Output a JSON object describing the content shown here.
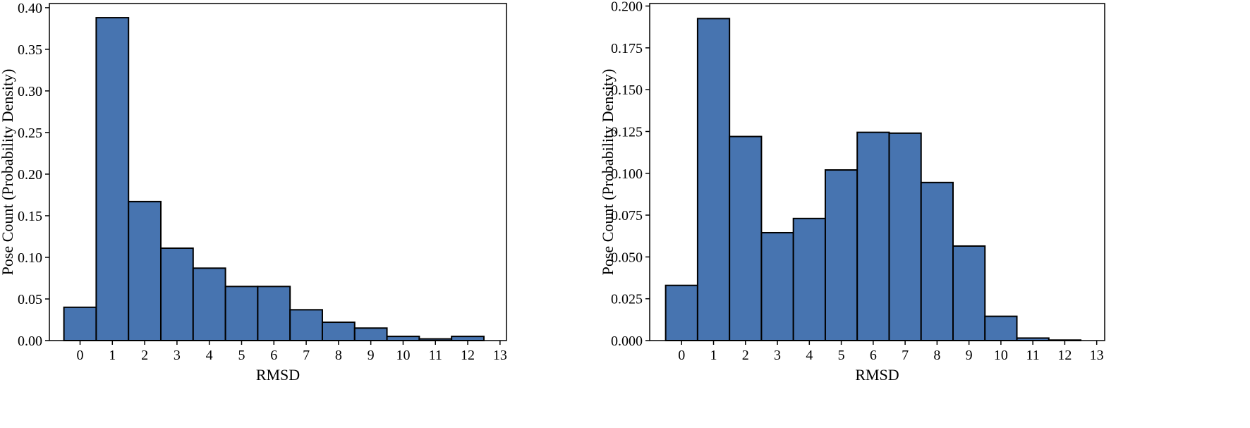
{
  "colors": {
    "bar_fill": "#4774b0",
    "bar_edge": "#000000",
    "frame": "#000000",
    "background": "#ffffff"
  },
  "chart_data": [
    {
      "type": "bar",
      "xlabel": "RMSD",
      "ylabel": "Pose Count (Probability Density)",
      "x_ticks": [
        "0",
        "1",
        "2",
        "3",
        "4",
        "5",
        "6",
        "7",
        "8",
        "9",
        "10",
        "11",
        "12",
        "13"
      ],
      "y_ticks": [
        "0.00",
        "0.05",
        "0.10",
        "0.15",
        "0.20",
        "0.25",
        "0.30",
        "0.35",
        "0.40"
      ],
      "xlim": [
        -0.95,
        13.2
      ],
      "ylim": [
        0,
        0.405
      ],
      "bins": [
        {
          "x": 0,
          "value": 0.04
        },
        {
          "x": 1,
          "value": 0.388
        },
        {
          "x": 2,
          "value": 0.167
        },
        {
          "x": 3,
          "value": 0.111
        },
        {
          "x": 4,
          "value": 0.087
        },
        {
          "x": 5,
          "value": 0.065
        },
        {
          "x": 6,
          "value": 0.065
        },
        {
          "x": 7,
          "value": 0.037
        },
        {
          "x": 8,
          "value": 0.022
        },
        {
          "x": 9,
          "value": 0.015
        },
        {
          "x": 10,
          "value": 0.005
        },
        {
          "x": 11,
          "value": 0.002
        },
        {
          "x": 12,
          "value": 0.005
        }
      ],
      "bin_width": 1,
      "grid": false,
      "legend": "none"
    },
    {
      "type": "bar",
      "xlabel": "RMSD",
      "ylabel": "Pose Count (Probability Density)",
      "x_ticks": [
        "0",
        "1",
        "2",
        "3",
        "4",
        "5",
        "6",
        "7",
        "8",
        "9",
        "10",
        "11",
        "12",
        "13"
      ],
      "y_ticks": [
        "0.000",
        "0.025",
        "0.050",
        "0.075",
        "0.100",
        "0.125",
        "0.150",
        "0.175",
        "0.200"
      ],
      "xlim": [
        -1.0,
        13.25
      ],
      "ylim": [
        0,
        0.2015
      ],
      "bins": [
        {
          "x": 0,
          "value": 0.033
        },
        {
          "x": 1,
          "value": 0.1925
        },
        {
          "x": 2,
          "value": 0.122
        },
        {
          "x": 3,
          "value": 0.0645
        },
        {
          "x": 4,
          "value": 0.073
        },
        {
          "x": 5,
          "value": 0.102
        },
        {
          "x": 6,
          "value": 0.1245
        },
        {
          "x": 7,
          "value": 0.124
        },
        {
          "x": 8,
          "value": 0.0945
        },
        {
          "x": 9,
          "value": 0.0565
        },
        {
          "x": 10,
          "value": 0.0145
        },
        {
          "x": 11,
          "value": 0.0015
        },
        {
          "x": 12,
          "value": 0.0003
        }
      ],
      "bin_width": 1,
      "grid": false,
      "legend": "none"
    }
  ]
}
